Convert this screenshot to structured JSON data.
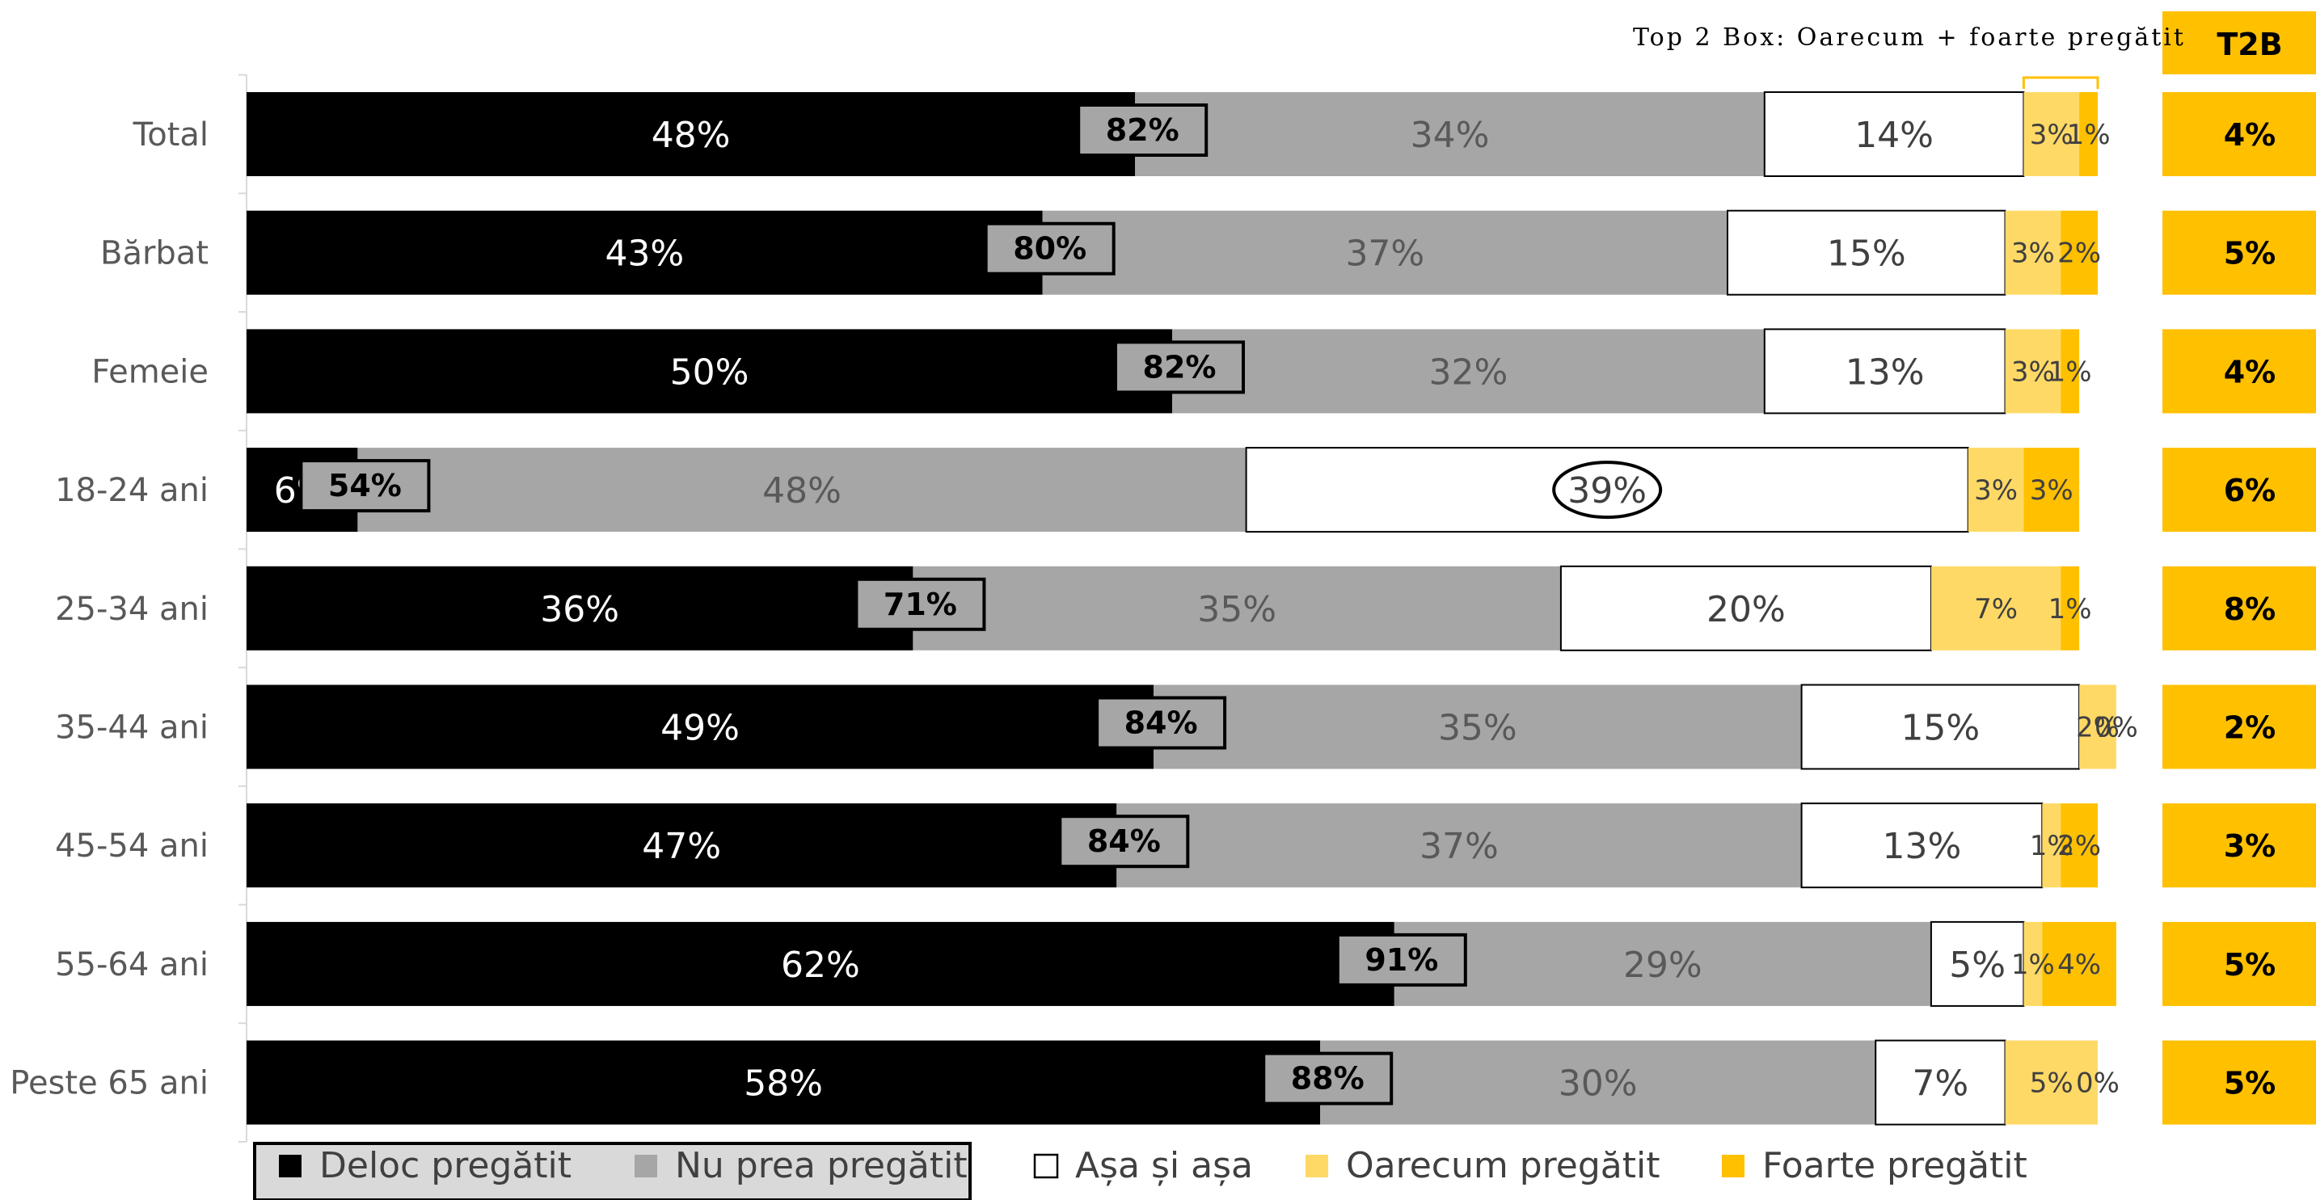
{
  "chart_data": {
    "type": "bar",
    "orientation": "horizontal",
    "stacked": true,
    "categories": [
      "Total",
      "Bărbat",
      "Femeie",
      "18-24 ani",
      "25-34 ani",
      "35-44 ani",
      "45-54 ani",
      "55-64 ani",
      "Peste 65 ani"
    ],
    "series": [
      {
        "name": "Deloc pregătit",
        "color": "#000000",
        "values": [
          48,
          43,
          50,
          6,
          36,
          49,
          47,
          62,
          58
        ],
        "labels": [
          "48%",
          "43%",
          "50%",
          "6%",
          "36%",
          "49%",
          "47%",
          "62%",
          "58%"
        ]
      },
      {
        "name": "Nu prea pregătit",
        "color": "#A6A6A6",
        "values": [
          34,
          37,
          32,
          48,
          35,
          35,
          37,
          29,
          30
        ],
        "labels": [
          "34%",
          "37%",
          "32%",
          "48%",
          "35%",
          "35%",
          "37%",
          "29%",
          "30%"
        ]
      },
      {
        "name": "Așa și așa",
        "color": "#FFFFFF",
        "values": [
          14,
          15,
          13,
          39,
          20,
          15,
          13,
          5,
          7
        ],
        "labels": [
          "14%",
          "15%",
          "13%",
          "39%",
          "20%",
          "15%",
          "13%",
          "5%",
          "7%"
        ]
      },
      {
        "name": "Oarecum pregătit",
        "color": "#FFD966",
        "values": [
          3,
          3,
          3,
          3,
          7,
          2,
          1,
          1,
          5
        ],
        "labels": [
          "3%",
          "3%",
          "3%",
          "3%",
          "7%",
          "2%",
          "1%",
          "1%",
          "5%"
        ]
      },
      {
        "name": "Foarte pregătit",
        "color": "#FFC000",
        "values": [
          1,
          2,
          1,
          3,
          1,
          0,
          2,
          4,
          0
        ],
        "labels": [
          "1%",
          "2%",
          "1%",
          "3%",
          "1%",
          "0%",
          "2%",
          "4%",
          "0%"
        ]
      }
    ],
    "bottom2_sum": {
      "values": [
        82,
        80,
        82,
        54,
        71,
        84,
        84,
        91,
        88
      ],
      "labels": [
        "82%",
        "80%",
        "82%",
        "54%",
        "71%",
        "84%",
        "84%",
        "91%",
        "88%"
      ]
    },
    "t2b": {
      "header": "T2B",
      "values": [
        4,
        5,
        4,
        6,
        8,
        2,
        3,
        5,
        5
      ],
      "labels": [
        "4%",
        "5%",
        "4%",
        "6%",
        "8%",
        "2%",
        "3%",
        "5%",
        "5%"
      ]
    },
    "annotation": "Top 2 Box: Oarecum + foarte pregătit",
    "highlighted": {
      "category": "18-24 ani",
      "series": "Așa și așa"
    },
    "xlim": [
      0,
      100
    ],
    "legend_position": "bottom"
  }
}
